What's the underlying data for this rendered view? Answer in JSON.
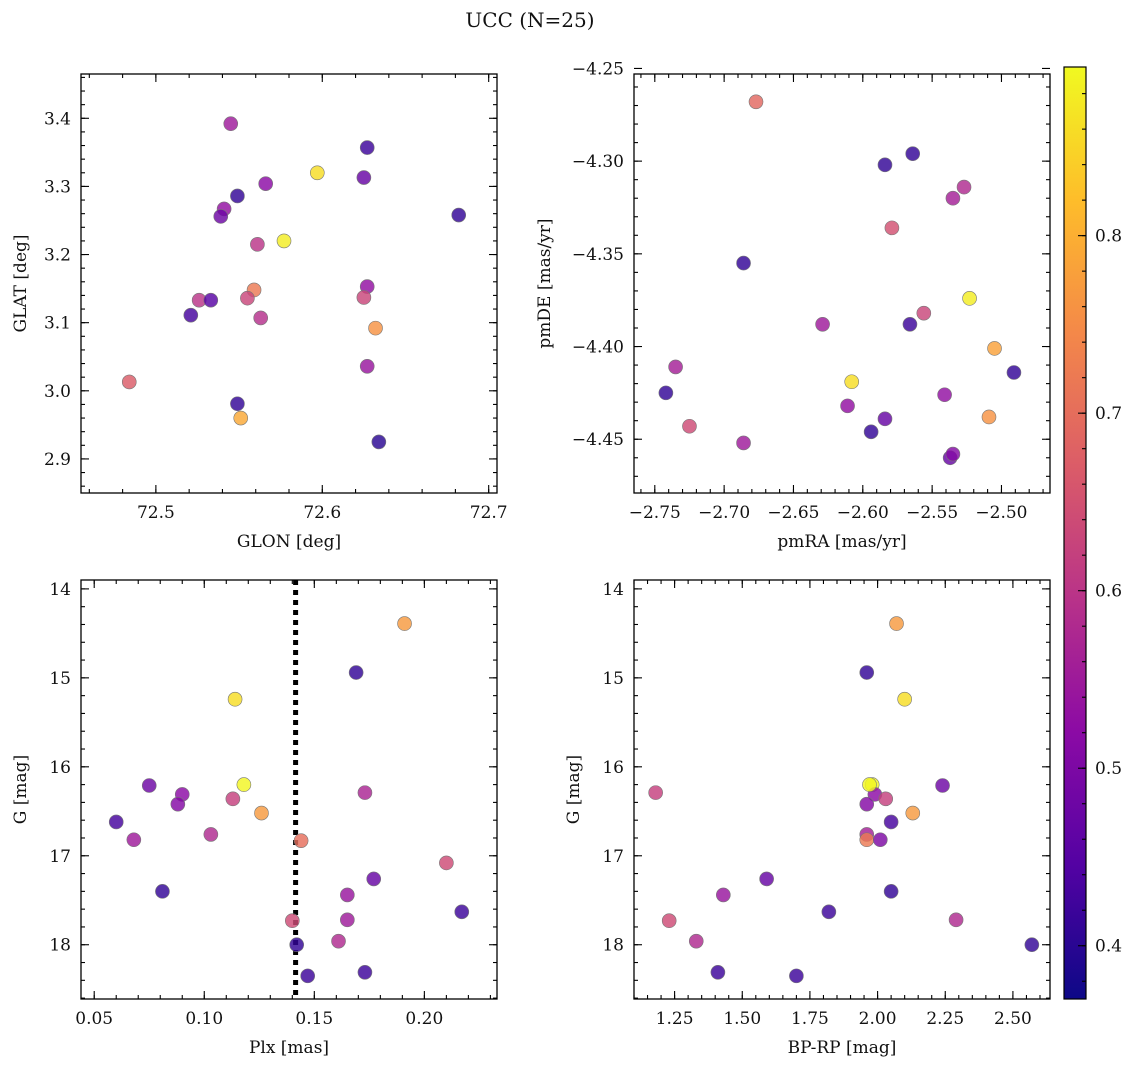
{
  "figure_title": "UCC (N=25)",
  "chart_data": [
    {
      "type": "scatter",
      "id": "spatial",
      "xlabel": "GLON [deg]",
      "ylabel": "GLAT [deg]",
      "xlim": [
        72.455,
        72.705
      ],
      "ylim": [
        2.85,
        3.465
      ],
      "invert_y": false,
      "xticks": [
        72.5,
        72.6,
        72.7
      ],
      "xtick_labels": [
        "72.5",
        "72.6",
        "72.7"
      ],
      "yticks": [
        2.9,
        3.0,
        3.1,
        3.2,
        3.3,
        3.4
      ],
      "ytick_labels": [
        "2.9",
        "3.0",
        "3.1",
        "3.2",
        "3.3",
        "3.4"
      ],
      "x": [
        72.545,
        72.597,
        72.549,
        72.566,
        72.541,
        72.539,
        72.577,
        72.627,
        72.625,
        72.682,
        72.561,
        72.627,
        72.559,
        72.555,
        72.526,
        72.533,
        72.521,
        72.625,
        72.563,
        72.632,
        72.484,
        72.627,
        72.549,
        72.551,
        72.634
      ],
      "y": [
        3.392,
        3.32,
        3.286,
        3.304,
        3.267,
        3.256,
        3.22,
        3.357,
        3.313,
        3.258,
        3.215,
        3.153,
        3.148,
        3.136,
        3.133,
        3.133,
        3.111,
        3.137,
        3.107,
        3.092,
        3.013,
        3.036,
        2.981,
        2.96,
        2.925
      ],
      "c": [
        0.55,
        0.86,
        0.41,
        0.52,
        0.53,
        0.48,
        0.88,
        0.42,
        0.47,
        0.41,
        0.6,
        0.53,
        0.72,
        0.63,
        0.6,
        0.45,
        0.43,
        0.63,
        0.59,
        0.76,
        0.67,
        0.54,
        0.41,
        0.79,
        0.4
      ]
    },
    {
      "type": "scatter",
      "id": "proper-motion",
      "xlabel": "pmRA [mas/yr]",
      "ylabel": "pmDE [mas/yr]",
      "xlim": [
        -2.765,
        -2.465
      ],
      "ylim": [
        -4.479,
        -4.253
      ],
      "invert_y": false,
      "xticks": [
        -2.75,
        -2.7,
        -2.65,
        -2.6,
        -2.55,
        -2.5
      ],
      "xtick_labels": [
        "−2.75",
        "−2.70",
        "−2.65",
        "−2.60",
        "−2.55",
        "−2.50"
      ],
      "yticks": [
        -4.45,
        -4.4,
        -4.35,
        -4.3,
        -4.25
      ],
      "ytick_labels": [
        "−4.45",
        "−4.40",
        "−4.35",
        "−4.30",
        "−4.25"
      ],
      "x": [
        -2.677,
        -2.584,
        -2.564,
        -2.527,
        -2.535,
        -2.579,
        -2.686,
        -2.523,
        -2.556,
        -2.566,
        -2.629,
        -2.505,
        -2.735,
        -2.742,
        -2.608,
        -2.611,
        -2.725,
        -2.686,
        -2.584,
        -2.594,
        -2.541,
        -2.537,
        -2.535,
        -2.509,
        -2.491
      ],
      "y": [
        -4.268,
        -4.302,
        -4.296,
        -4.314,
        -4.32,
        -4.336,
        -4.355,
        -4.374,
        -4.382,
        -4.388,
        -4.388,
        -4.401,
        -4.411,
        -4.425,
        -4.419,
        -4.432,
        -4.443,
        -4.452,
        -4.439,
        -4.446,
        -4.426,
        -4.46,
        -4.458,
        -4.438,
        -4.414
      ],
      "c": [
        0.69,
        0.41,
        0.41,
        0.58,
        0.56,
        0.65,
        0.41,
        0.88,
        0.63,
        0.42,
        0.55,
        0.78,
        0.56,
        0.41,
        0.86,
        0.53,
        0.64,
        0.55,
        0.47,
        0.41,
        0.53,
        0.47,
        0.51,
        0.76,
        0.41
      ]
    },
    {
      "type": "scatter",
      "id": "parallax-magnitude",
      "xlabel": "Plx [mas]",
      "ylabel": "G [mag]",
      "xlim": [
        0.044,
        0.233
      ],
      "ylim": [
        18.61,
        13.9
      ],
      "invert_y": true,
      "xticks": [
        0.05,
        0.1,
        0.15,
        0.2
      ],
      "xtick_labels": [
        "0.05",
        "0.10",
        "0.15",
        "0.20"
      ],
      "yticks": [
        14,
        15,
        16,
        17,
        18
      ],
      "ytick_labels": [
        "14",
        "15",
        "16",
        "17",
        "18"
      ],
      "vline": {
        "x": 0.1415,
        "style": "dotted"
      },
      "x": [
        0.191,
        0.169,
        0.114,
        0.118,
        0.075,
        0.09,
        0.088,
        0.06,
        0.113,
        0.126,
        0.103,
        0.068,
        0.144,
        0.173,
        0.21,
        0.081,
        0.165,
        0.177,
        0.217,
        0.14,
        0.165,
        0.142,
        0.161,
        0.173,
        0.147
      ],
      "y": [
        14.39,
        14.94,
        15.24,
        16.2,
        16.21,
        16.31,
        16.42,
        16.62,
        16.36,
        16.52,
        16.76,
        16.82,
        16.83,
        16.29,
        17.08,
        17.4,
        17.44,
        17.26,
        17.63,
        17.73,
        17.72,
        18.0,
        17.96,
        18.31,
        18.35
      ],
      "c": [
        0.77,
        0.41,
        0.86,
        0.89,
        0.48,
        0.52,
        0.51,
        0.43,
        0.62,
        0.77,
        0.58,
        0.55,
        0.7,
        0.57,
        0.64,
        0.41,
        0.54,
        0.47,
        0.42,
        0.64,
        0.55,
        0.41,
        0.58,
        0.42,
        0.42
      ]
    },
    {
      "type": "scatter",
      "id": "color-magnitude",
      "xlabel": "BP-RP [mag]",
      "ylabel": "G [mag]",
      "xlim": [
        1.1,
        2.637
      ],
      "ylim": [
        18.61,
        13.9
      ],
      "invert_y": true,
      "xticks": [
        1.25,
        1.5,
        1.75,
        2.0,
        2.25,
        2.5
      ],
      "xtick_labels": [
        "1.25",
        "1.50",
        "1.75",
        "2.00",
        "2.25",
        "2.50"
      ],
      "yticks": [
        14,
        15,
        16,
        17,
        18
      ],
      "ytick_labels": [
        "14",
        "15",
        "16",
        "17",
        "18"
      ],
      "x": [
        2.07,
        1.96,
        2.1,
        1.98,
        2.24,
        1.99,
        1.96,
        2.05,
        2.03,
        2.13,
        1.18,
        1.96,
        1.96,
        2.01,
        1.59,
        1.43,
        2.05,
        1.82,
        1.23,
        2.29,
        1.33,
        2.57,
        1.41,
        1.7,
        1.97
      ],
      "y": [
        14.39,
        14.94,
        15.24,
        16.2,
        16.21,
        16.31,
        16.42,
        16.62,
        16.36,
        16.52,
        16.29,
        16.76,
        16.82,
        16.82,
        17.26,
        17.44,
        17.4,
        17.63,
        17.73,
        17.72,
        17.96,
        18.0,
        18.31,
        18.35,
        16.2
      ],
      "c": [
        0.77,
        0.41,
        0.86,
        0.89,
        0.48,
        0.52,
        0.51,
        0.43,
        0.62,
        0.77,
        0.62,
        0.56,
        0.72,
        0.5,
        0.47,
        0.54,
        0.41,
        0.42,
        0.64,
        0.58,
        0.58,
        0.41,
        0.42,
        0.42,
        0.89
      ]
    }
  ],
  "colorbar": {
    "cmap": "plasma",
    "vmin": 0.37,
    "vmax": 0.895,
    "ticks": [
      0.4,
      0.5,
      0.6,
      0.7,
      0.8
    ],
    "tick_labels": [
      "0.4",
      "0.5",
      "0.6",
      "0.7",
      "0.8"
    ],
    "stops": [
      "#0d0887",
      "#5302a3",
      "#8b0aa5",
      "#b83289",
      "#db5c68",
      "#f48849",
      "#febd2a",
      "#f0f921"
    ]
  }
}
